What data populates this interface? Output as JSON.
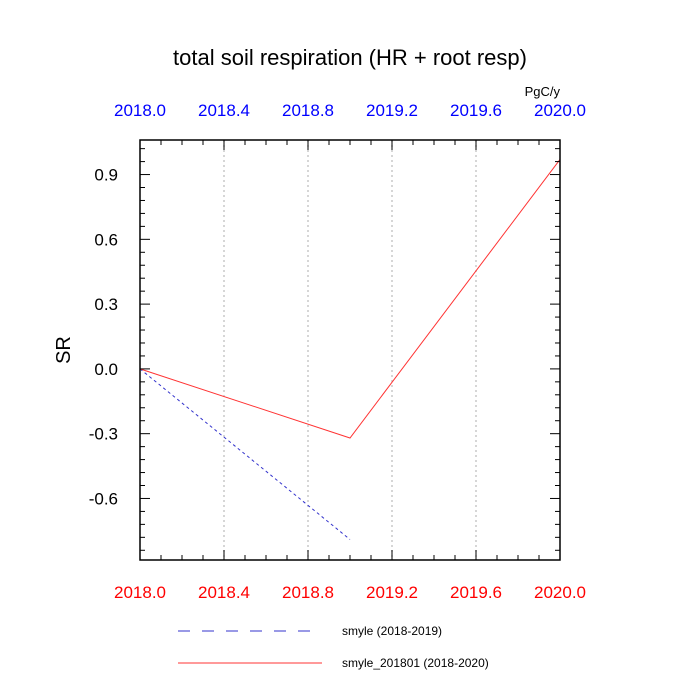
{
  "chart_data": {
    "type": "line",
    "title": "total soil respiration (HR + root resp)",
    "units": "PgC/y",
    "ylabel": "SR",
    "xlabel": "",
    "xlim": [
      2018.0,
      2020.0
    ],
    "ylim": [
      -0.885,
      1.06
    ],
    "x_ticks": [
      2018.0,
      2018.4,
      2018.8,
      2019.2,
      2019.6,
      2020.0
    ],
    "x_tick_labels": [
      "2018.0",
      "2018.4",
      "2018.8",
      "2019.2",
      "2019.6",
      "2020.0"
    ],
    "y_ticks": [
      0.9,
      0.6,
      0.3,
      0.0,
      -0.3,
      -0.6
    ],
    "y_tick_labels": [
      "0.9",
      "0.6",
      "0.3",
      "0.0",
      "-0.3",
      "-0.6"
    ],
    "grid": "vertical dotted",
    "series": [
      {
        "name": "smyle (2018-2019)",
        "color": "#3333cc",
        "dash": "dashed",
        "x": [
          2018.0,
          2019.0
        ],
        "values": [
          0.0,
          -0.79
        ]
      },
      {
        "name": "smyle_201801 (2018-2020)",
        "color": "#ff3333",
        "dash": "solid",
        "x": [
          2018.0,
          2019.0,
          2020.0
        ],
        "values": [
          0.0,
          -0.32,
          0.97
        ]
      }
    ],
    "top_axis_color": "#0000ff",
    "bottom_axis_color": "#ff0000",
    "legend_position": "bottom"
  }
}
